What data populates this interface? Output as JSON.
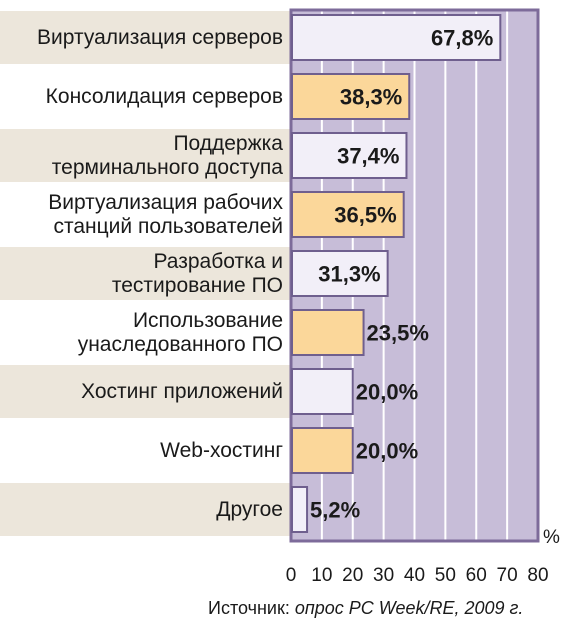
{
  "chart_data": {
    "type": "bar",
    "orientation": "horizontal",
    "categories": [
      "Виртуализация серверов",
      "Консолидация серверов",
      "Поддержка\nтерминального доступа",
      "Виртуализация рабочих\nстанций пользователей",
      "Разработка и\nтестирование ПО",
      "Использование\nунаследованного ПО",
      "Хостинг приложений",
      "Web-хостинг",
      "Другое"
    ],
    "values": [
      67.8,
      38.3,
      37.4,
      36.5,
      31.3,
      23.5,
      20.0,
      20.0,
      5.2
    ],
    "value_labels": [
      "67,8%",
      "38,3%",
      "37,4%",
      "36,5%",
      "31,3%",
      "23,5%",
      "20,0%",
      "20,0%",
      "5,2%"
    ],
    "xlim": [
      0,
      80
    ],
    "xticks": [
      "0",
      "10",
      "20",
      "30",
      "40",
      "50",
      "60",
      "70",
      "80"
    ],
    "unit": "%",
    "grid": true,
    "source_prefix": "Источник: ",
    "source_italic": "опрос PC Week/RE, 2009 г.",
    "colors": {
      "plot_bg": "#c7bdd8",
      "gridline": "#ffffff",
      "frame": "#7d6b9a",
      "label_band": "#ece6db",
      "bar_a": "#f2eff8",
      "bar_b": "#fbd79a",
      "bar_border": "#6f5f8e",
      "text": "#1a1a1a"
    }
  }
}
